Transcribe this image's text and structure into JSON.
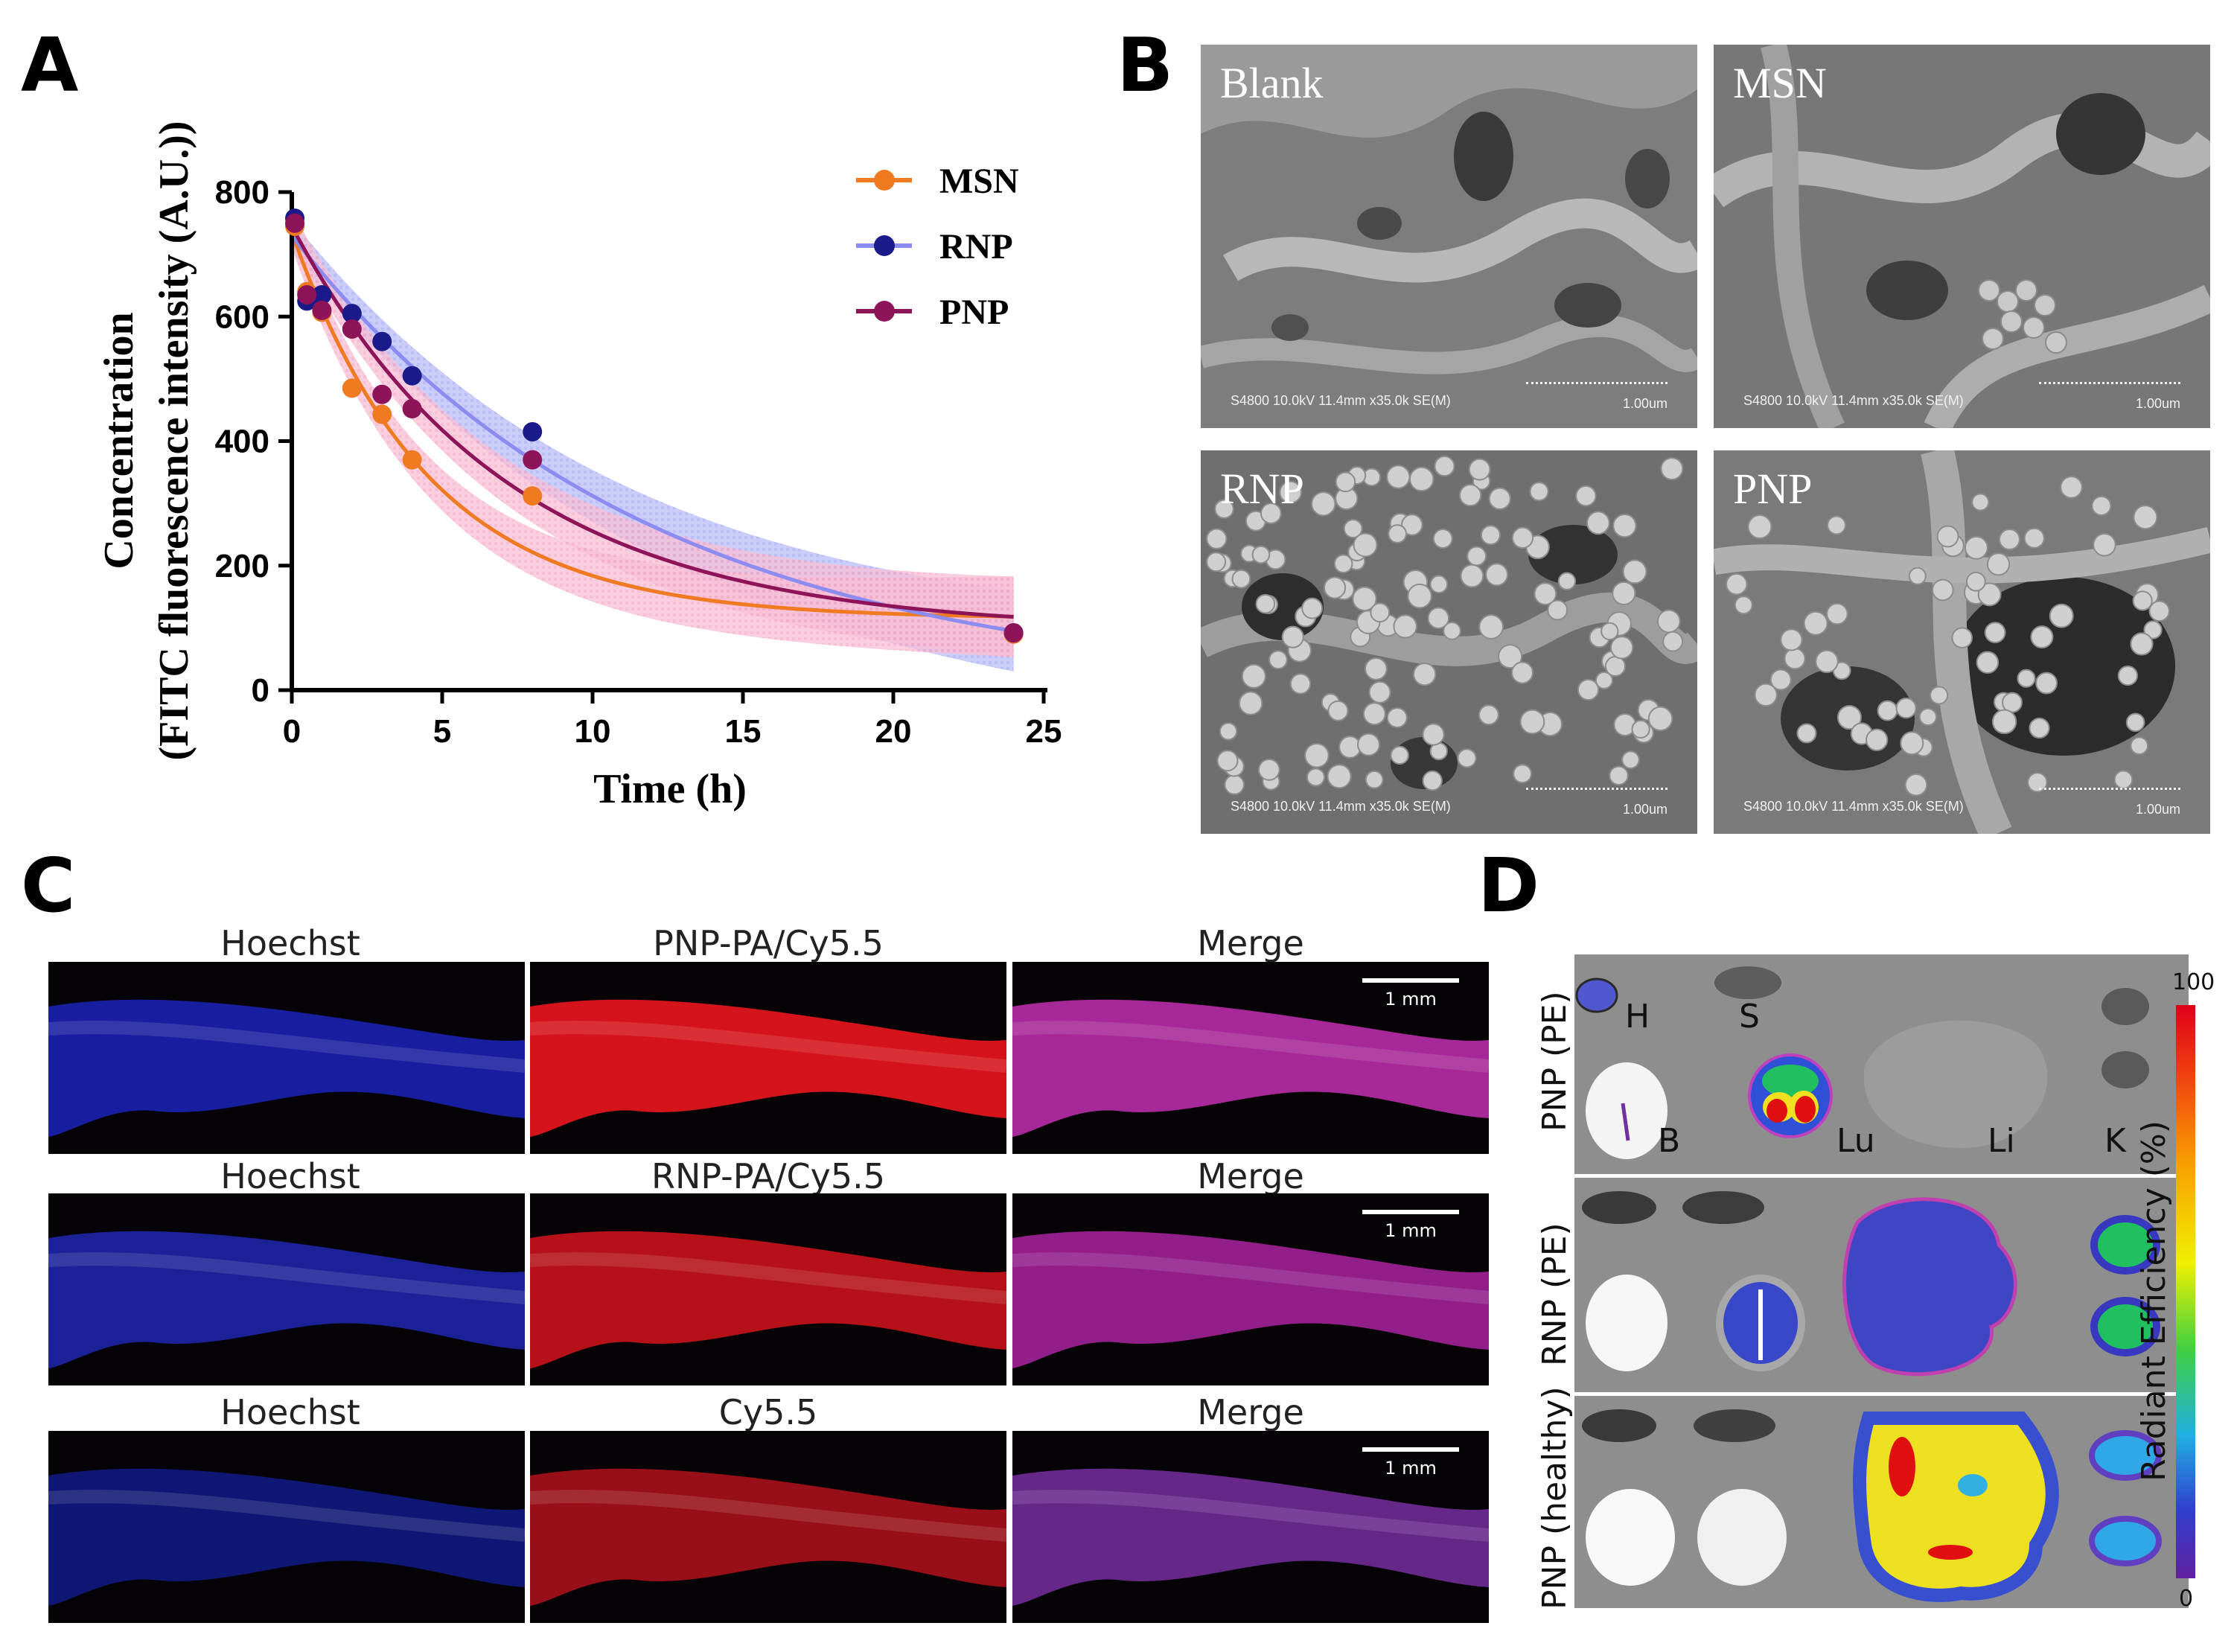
{
  "panels": {
    "A": "A",
    "B": "B",
    "C": "C",
    "D": "D"
  },
  "chart_data": {
    "type": "scatter",
    "xlabel": "Time (h)",
    "ylabel_line1": "Concentration",
    "ylabel_line2": "(FITC fluorescence intensity (A.U.))",
    "xlim": [
      0,
      25
    ],
    "ylim": [
      0,
      800
    ],
    "xticks": [
      0,
      5,
      10,
      15,
      20,
      25
    ],
    "yticks": [
      0,
      200,
      400,
      600,
      800
    ],
    "legend_position": "top-right",
    "series": [
      {
        "name": "MSN",
        "color": "#f07a22",
        "band": "#f6a9c6",
        "x": [
          0.1,
          0.5,
          1,
          2,
          3,
          4,
          8,
          24
        ],
        "y": [
          745,
          640,
          607,
          485,
          443,
          370,
          312,
          90
        ],
        "fit": {
          "a": 620,
          "k": 0.22,
          "c": 115
        }
      },
      {
        "name": "RNP",
        "color": "#1b1a8a",
        "line": "#8c8cf0",
        "band": "#aab0f8",
        "x": [
          0.1,
          0.5,
          1,
          2,
          3,
          4,
          8,
          24
        ],
        "y": [
          758,
          625,
          635,
          605,
          560,
          505,
          415,
          92
        ],
        "fit": {
          "a": 730,
          "k": 0.085,
          "c": 0
        }
      },
      {
        "name": "PNP",
        "color": "#8e1459",
        "band": "#f2a6c8",
        "x": [
          0.1,
          0.5,
          1,
          2,
          3,
          4,
          8,
          24
        ],
        "y": [
          750,
          635,
          610,
          580,
          475,
          452,
          370,
          92
        ],
        "fit": {
          "a": 650,
          "k": 0.14,
          "c": 95
        }
      }
    ]
  },
  "sem": {
    "tiles": [
      {
        "label": "Blank",
        "footer": "S4800 10.0kV 11.4mm x35.0k SE(M)",
        "scale": "1.00um"
      },
      {
        "label": "MSN",
        "footer": "S4800 10.0kV 11.4mm x35.0k SE(M)",
        "scale": "1.00um"
      },
      {
        "label": "RNP",
        "footer": "S4800 10.0kV 11.4mm x35.0k SE(M)",
        "scale": "1.00um"
      },
      {
        "label": "PNP",
        "footer": "S4800 10.0kV 11.4mm x35.0k SE(M)",
        "scale": "1.00um"
      }
    ]
  },
  "fluorescence": {
    "rows": [
      {
        "labels": [
          "Hoechst",
          "PNP-PA/Cy5.5",
          "Merge"
        ],
        "scale": "1 mm"
      },
      {
        "labels": [
          "Hoechst",
          "RNP-PA/Cy5.5",
          "Merge"
        ],
        "scale": "1 mm"
      },
      {
        "labels": [
          "Hoechst",
          "Cy5.5",
          "Merge"
        ],
        "scale": "1 mm"
      }
    ]
  },
  "ivis": {
    "rows": [
      {
        "label": "PNP (PE)"
      },
      {
        "label": "RNP (PE)"
      },
      {
        "label": "PNP (healthy)"
      }
    ],
    "organs": {
      "H": "H",
      "S": "S",
      "B": "B",
      "Lu": "Lu",
      "Li": "Li",
      "K": "K"
    },
    "colorbar": {
      "max": "100",
      "min": "0",
      "label": "Radiant Efficiency (%)"
    }
  }
}
